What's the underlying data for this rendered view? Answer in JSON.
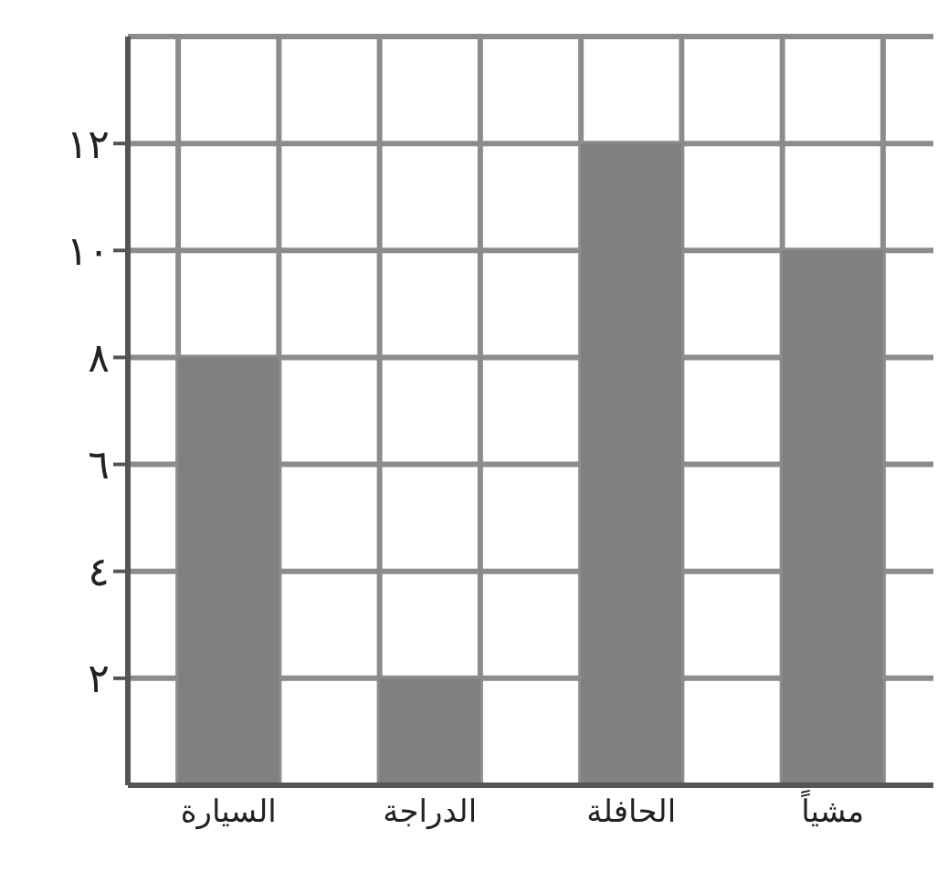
{
  "chart_data": {
    "type": "bar",
    "categories": [
      "السيارة",
      "الدراجة",
      "الحافلة",
      "مشياً"
    ],
    "values": [
      8,
      2,
      12,
      10
    ],
    "color": "#808080",
    "ylim": [
      0,
      14
    ],
    "yticks": [
      {
        "value": 2,
        "label": "٢"
      },
      {
        "value": 4,
        "label": "٤"
      },
      {
        "value": 6,
        "label": "٦"
      },
      {
        "value": 8,
        "label": "٨"
      },
      {
        "value": 10,
        "label": "١٠"
      },
      {
        "value": 12,
        "label": "١٢"
      }
    ],
    "grid": true
  }
}
